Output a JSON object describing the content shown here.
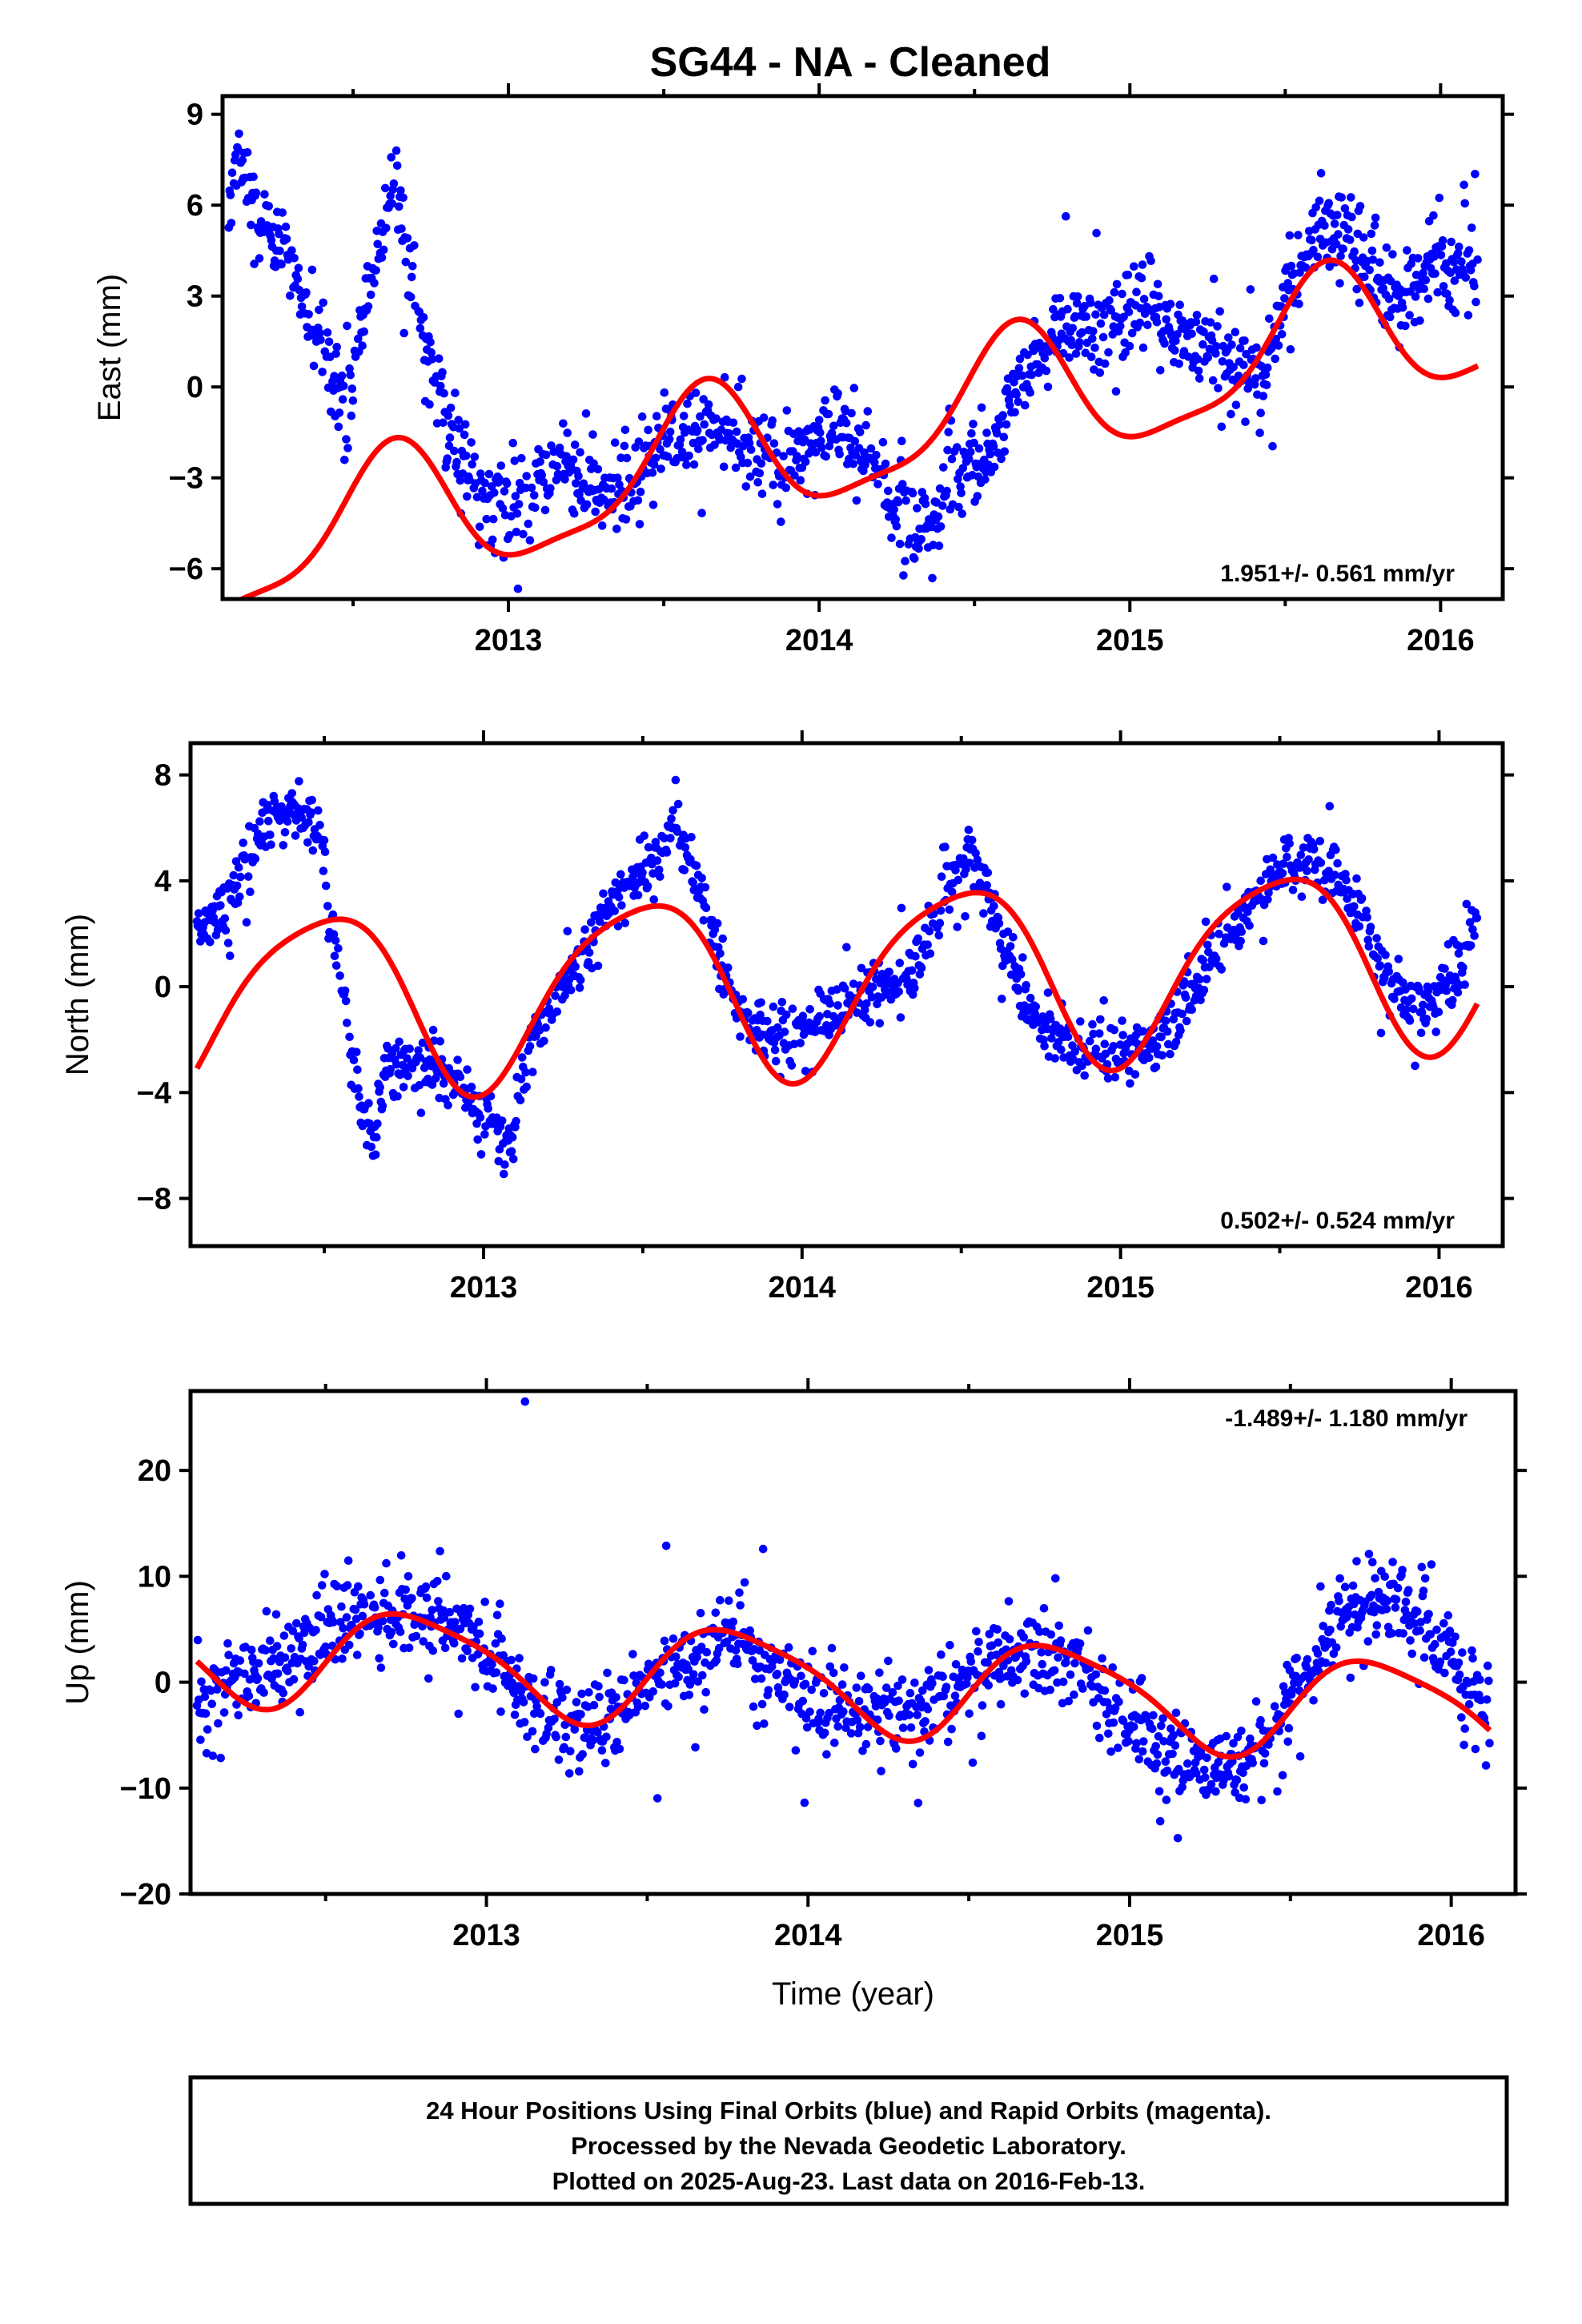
{
  "title": "SG44  - NA - Cleaned",
  "caption": {
    "lines": [
      "24 Hour Positions Using Final Orbits (blue) and Rapid Orbits (magenta).",
      "Processed by the Nevada Geodetic Laboratory.",
      "Plotted on 2025-Aug-23. Last data on 2016-Feb-13."
    ]
  },
  "colors": {
    "final_orbits": "#0000ff",
    "rapid_orbits": "#ff00ff",
    "model_fit": "#ff0000",
    "frame": "#000000"
  },
  "chart_data": [
    {
      "type": "scatter",
      "name": "east",
      "ylabel": "East (mm)",
      "xlabel": "",
      "xlim": [
        2012.08,
        2016.2
      ],
      "ylim": [
        -7,
        9.6
      ],
      "yticks": [
        -6,
        -3,
        0,
        3,
        6,
        9
      ],
      "ytick_labels": [
        "−6",
        "−3",
        "0",
        "3",
        "6",
        "9"
      ],
      "xticks": [
        2013,
        2014,
        2015,
        2016
      ],
      "xtick_labels": [
        "2013",
        "2014",
        "2015",
        "2016"
      ],
      "rate_label": "1.951+/- 0.561 mm/yr",
      "rate_label_position": "bottom-right",
      "data_trend": [
        [
          2012.1,
          6.0
        ],
        [
          2012.13,
          8.0
        ],
        [
          2012.2,
          5.5
        ],
        [
          2012.3,
          4.0
        ],
        [
          2012.42,
          0.8
        ],
        [
          2012.48,
          -1.0
        ],
        [
          2012.56,
          4.0
        ],
        [
          2012.64,
          7.0
        ],
        [
          2012.7,
          3.0
        ],
        [
          2012.8,
          -1.0
        ],
        [
          2012.92,
          -3.8
        ],
        [
          2013.0,
          -4.2
        ],
        [
          2013.1,
          -2.8
        ],
        [
          2013.2,
          -2.5
        ],
        [
          2013.3,
          -4.0
        ],
        [
          2013.4,
          -3.2
        ],
        [
          2013.5,
          -1.5
        ],
        [
          2013.6,
          -1.2
        ],
        [
          2013.72,
          -1.8
        ],
        [
          2013.85,
          -2.6
        ],
        [
          2013.95,
          -2.4
        ],
        [
          2014.05,
          -1.0
        ],
        [
          2014.15,
          -2.0
        ],
        [
          2014.25,
          -4.0
        ],
        [
          2014.35,
          -4.5
        ],
        [
          2014.45,
          -3.0
        ],
        [
          2014.55,
          -2.0
        ],
        [
          2014.65,
          0.0
        ],
        [
          2014.75,
          1.5
        ],
        [
          2014.85,
          2.0
        ],
        [
          2014.95,
          2.5
        ],
        [
          2015.05,
          2.5
        ],
        [
          2015.15,
          2.0
        ],
        [
          2015.3,
          1.0
        ],
        [
          2015.42,
          0.0
        ],
        [
          2015.5,
          3.0
        ],
        [
          2015.6,
          5.0
        ],
        [
          2015.7,
          4.8
        ],
        [
          2015.8,
          3.5
        ],
        [
          2015.88,
          3.0
        ],
        [
          2016.0,
          4.2
        ],
        [
          2016.12,
          3.8
        ]
      ],
      "scatter_spread": 1.3,
      "fit": {
        "x_start": 2012.1,
        "x_end": 2016.12,
        "offset": -1.8,
        "rate": 1.951,
        "ref": 2014.0,
        "amp1": 2.2,
        "peak1": 0.62,
        "amp2": 0.6,
        "phase2": 0.15
      }
    },
    {
      "type": "scatter",
      "name": "north",
      "ylabel": "North (mm)",
      "xlabel": "",
      "xlim": [
        2012.08,
        2016.2
      ],
      "ylim": [
        -9.8,
        9.2
      ],
      "yticks": [
        -8,
        -4,
        0,
        4,
        8
      ],
      "ytick_labels": [
        "−8",
        "−4",
        "0",
        "4",
        "8"
      ],
      "xticks": [
        2013,
        2014,
        2015,
        2016
      ],
      "xtick_labels": [
        "2013",
        "2014",
        "2015",
        "2016"
      ],
      "rate_label": "0.502+/- 0.524 mm/yr",
      "rate_label_position": "bottom-right",
      "data_trend": [
        [
          2012.1,
          2.0
        ],
        [
          2012.2,
          3.0
        ],
        [
          2012.3,
          6.0
        ],
        [
          2012.4,
          6.5
        ],
        [
          2012.48,
          6.0
        ],
        [
          2012.55,
          0.0
        ],
        [
          2012.6,
          -4.0
        ],
        [
          2012.65,
          -6.0
        ],
        [
          2012.7,
          -3.0
        ],
        [
          2012.85,
          -3.0
        ],
        [
          2012.98,
          -4.5
        ],
        [
          2013.08,
          -6.0
        ],
        [
          2013.15,
          -2.0
        ],
        [
          2013.25,
          0.0
        ],
        [
          2013.35,
          2.0
        ],
        [
          2013.45,
          4.0
        ],
        [
          2013.55,
          5.0
        ],
        [
          2013.6,
          6.5
        ],
        [
          2013.7,
          3.0
        ],
        [
          2013.8,
          -1.0
        ],
        [
          2013.92,
          -2.0
        ],
        [
          2014.05,
          -1.5
        ],
        [
          2014.15,
          -0.5
        ],
        [
          2014.25,
          0.0
        ],
        [
          2014.35,
          0.5
        ],
        [
          2014.45,
          3.5
        ],
        [
          2014.52,
          5.0
        ],
        [
          2014.6,
          3.0
        ],
        [
          2014.7,
          -1.0
        ],
        [
          2014.8,
          -2.0
        ],
        [
          2014.95,
          -2.5
        ],
        [
          2015.1,
          -2.0
        ],
        [
          2015.2,
          -1.0
        ],
        [
          2015.3,
          1.5
        ],
        [
          2015.4,
          3.0
        ],
        [
          2015.5,
          4.5
        ],
        [
          2015.6,
          5.0
        ],
        [
          2015.7,
          4.0
        ],
        [
          2015.8,
          1.5
        ],
        [
          2015.88,
          -0.5
        ],
        [
          2015.95,
          -1.0
        ],
        [
          2016.05,
          0.5
        ],
        [
          2016.12,
          2.5
        ]
      ],
      "scatter_spread": 1.0,
      "fit": {
        "x_start": 2012.1,
        "x_end": 2016.12,
        "offset": 0.3,
        "rate": 0.502,
        "ref": 2014.0,
        "amp1": 3.4,
        "peak1": 0.49,
        "amp2": 0.6,
        "phase2": 0.2
      }
    },
    {
      "type": "scatter",
      "name": "up",
      "ylabel": "Up (mm)",
      "xlabel": "Time (year)",
      "xlim": [
        2012.08,
        2016.2
      ],
      "ylim": [
        -20,
        27.5
      ],
      "yticks": [
        -20,
        -10,
        0,
        10,
        20
      ],
      "ytick_labels": [
        "−20",
        "−10",
        "0",
        "10",
        "20"
      ],
      "xticks": [
        2013,
        2014,
        2015,
        2016
      ],
      "xtick_labels": [
        "2013",
        "2014",
        "2015",
        "2016"
      ],
      "rate_label": "-1.489+/- 1.180 mm/yr",
      "rate_label_position": "top-right",
      "data_trend": [
        [
          2012.1,
          -1.0
        ],
        [
          2012.3,
          1.0
        ],
        [
          2012.5,
          5.0
        ],
        [
          2012.7,
          7.0
        ],
        [
          2012.85,
          7.0
        ],
        [
          2013.0,
          3.0
        ],
        [
          2013.15,
          -3.0
        ],
        [
          2013.3,
          -5.0
        ],
        [
          2013.45,
          -2.0
        ],
        [
          2013.6,
          2.0
        ],
        [
          2013.75,
          4.0
        ],
        [
          2013.9,
          0.0
        ],
        [
          2014.05,
          -2.0
        ],
        [
          2014.2,
          -3.0
        ],
        [
          2014.35,
          -3.0
        ],
        [
          2014.5,
          0.0
        ],
        [
          2014.65,
          2.5
        ],
        [
          2014.8,
          2.0
        ],
        [
          2014.95,
          -2.0
        ],
        [
          2015.1,
          -6.0
        ],
        [
          2015.25,
          -8.0
        ],
        [
          2015.35,
          -8.0
        ],
        [
          2015.45,
          -4.0
        ],
        [
          2015.55,
          1.0
        ],
        [
          2015.65,
          6.0
        ],
        [
          2015.78,
          8.0
        ],
        [
          2015.9,
          6.0
        ],
        [
          2016.0,
          2.0
        ],
        [
          2016.12,
          -5.0
        ]
      ],
      "scatter_spread": 3.5,
      "fit": {
        "x_start": 2012.1,
        "x_end": 2016.12,
        "offset": 0.2,
        "rate": -1.489,
        "ref": 2014.0,
        "amp1": 4.6,
        "peak1": 0.78,
        "amp2": 0.9,
        "phase2": 0.1
      }
    }
  ]
}
